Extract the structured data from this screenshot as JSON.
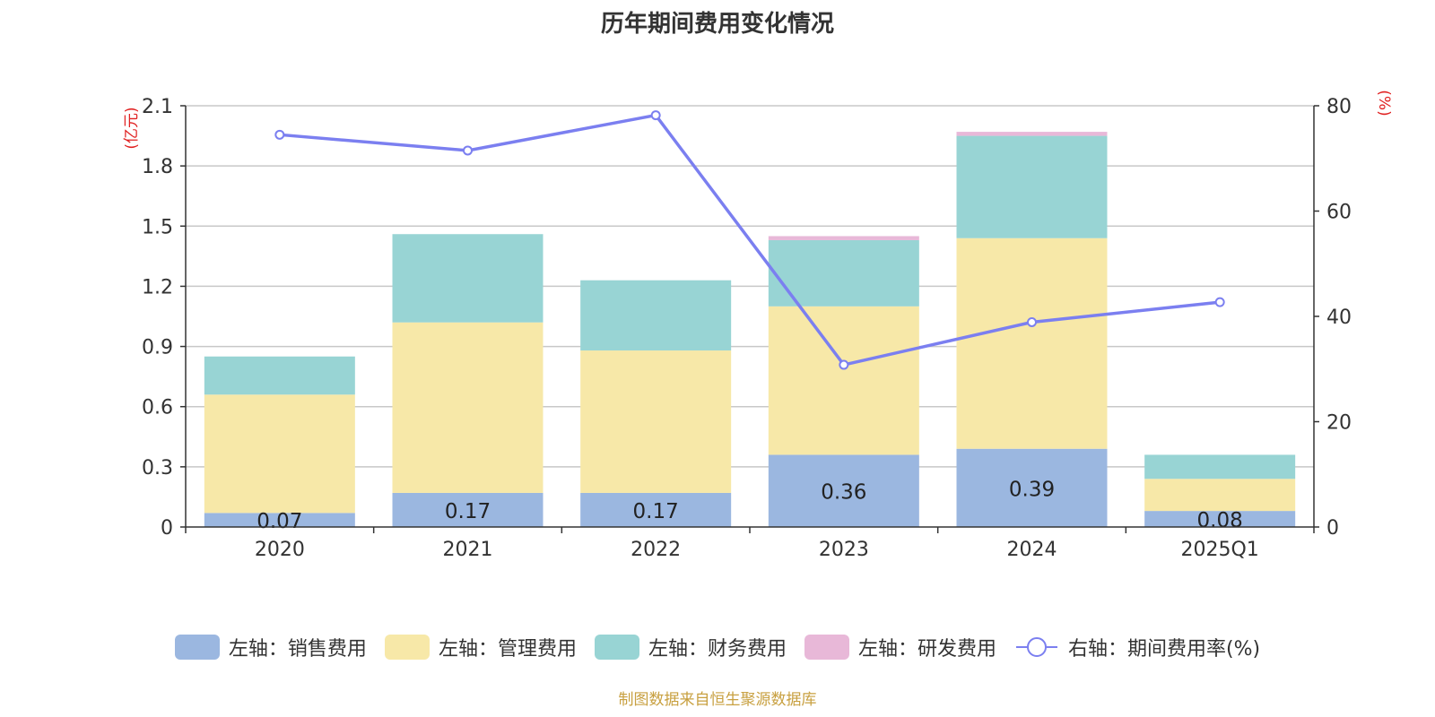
{
  "title": "历年期间费用变化情况",
  "source_note": "制图数据来自恒生聚源数据库",
  "chart_data": {
    "type": "bar",
    "stacked": true,
    "categories": [
      "2020",
      "2021",
      "2022",
      "2023",
      "2024",
      "2025Q1"
    ],
    "left_axis": {
      "unit": "(亿元)",
      "range": [
        0,
        2.1
      ],
      "ticks": [
        "0",
        "0.3",
        "0.6",
        "0.9",
        "1.2",
        "1.5",
        "1.8",
        "2.1"
      ]
    },
    "right_axis": {
      "unit": "(%)",
      "range": [
        0,
        80
      ],
      "ticks": [
        "0",
        "20",
        "40",
        "60",
        "80"
      ]
    },
    "series": [
      {
        "name": "左轴：销售费用",
        "axis": "left",
        "color": "#9bb7e0",
        "values": [
          0.07,
          0.17,
          0.17,
          0.36,
          0.39,
          0.08
        ],
        "labels": [
          "0.07",
          "0.17",
          "0.17",
          "0.36",
          "0.39",
          "0.08"
        ]
      },
      {
        "name": "左轴：管理费用",
        "axis": "left",
        "color": "#f7e8a8",
        "values": [
          0.59,
          0.85,
          0.71,
          0.74,
          1.05,
          0.16
        ]
      },
      {
        "name": "左轴：财务费用",
        "axis": "left",
        "color": "#98d4d4",
        "values": [
          0.19,
          0.44,
          0.35,
          0.33,
          0.51,
          0.12
        ]
      },
      {
        "name": "左轴：研发费用",
        "axis": "left",
        "color": "#e8b8d8",
        "values": [
          0.0,
          0.0,
          0.0,
          0.02,
          0.02,
          0.0
        ]
      }
    ],
    "line_series": {
      "name": "右轴：期间费用率(%)",
      "axis": "right",
      "color": "#7b7ff0",
      "values": [
        74.5,
        71.5,
        78.2,
        30.8,
        38.9,
        42.7
      ]
    },
    "grid": true,
    "legend_position": "bottom"
  }
}
